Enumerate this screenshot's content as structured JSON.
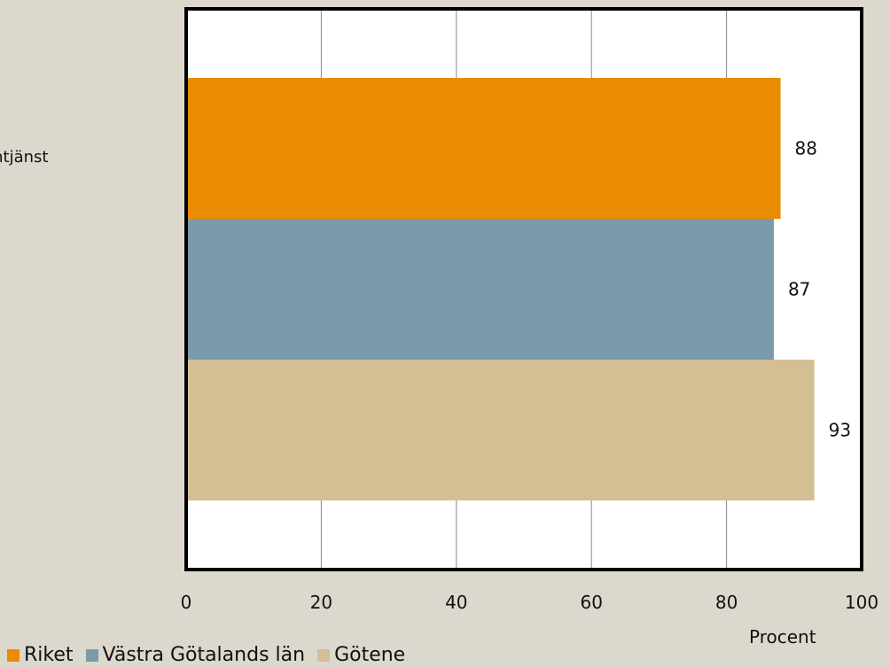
{
  "chart_data": {
    "type": "bar",
    "orientation": "horizontal",
    "category_label_partial": "u\nmtjänst",
    "categories": [
      "u mtjänst"
    ],
    "series": [
      {
        "name": "Riket",
        "values": [
          88
        ],
        "color": "#ea8b00"
      },
      {
        "name": "Västra Götalands län",
        "values": [
          87
        ],
        "color": "#7b9aab"
      },
      {
        "name": "Götene",
        "values": [
          93
        ],
        "color": "#d4bf95"
      }
    ],
    "xlabel": "Procent",
    "xlim": [
      0,
      100
    ],
    "xticks": [
      "0",
      "20",
      "40",
      "60",
      "80",
      "100"
    ],
    "data_labels": [
      "88",
      "87",
      "93"
    ],
    "grid": "vertical",
    "legend": "bottom-left"
  }
}
